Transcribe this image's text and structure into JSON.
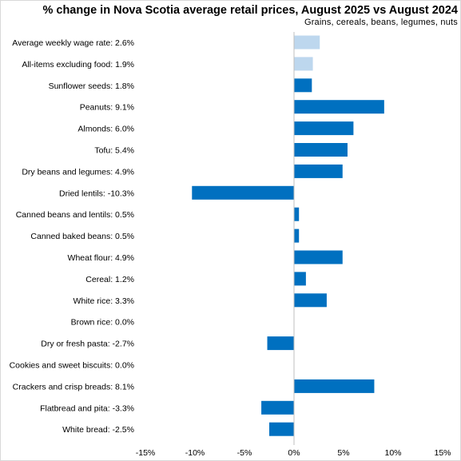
{
  "chart_data": {
    "type": "bar",
    "orientation": "horizontal",
    "title": "% change in Nova Scotia average retail prices, August 2025 vs August 2024",
    "subtitle": "Grains, cereals, beans, legumes, nuts",
    "xlim": [
      -15,
      15
    ],
    "xticks": [
      -15,
      -10,
      -5,
      0,
      5,
      10,
      15
    ],
    "xtick_labels": [
      "-15%",
      "-10%",
      "-5%",
      "0%",
      "5%",
      "10%",
      "15%"
    ],
    "grid": false,
    "colors": {
      "default": "#0070c0",
      "reference": "#bdd7ee"
    },
    "categories": [
      "Average weekly wage rate: 2.6%",
      "All-items excluding food: 1.9%",
      "Sunflower seeds: 1.8%",
      "Peanuts: 9.1%",
      "Almonds: 6.0%",
      "Tofu: 5.4%",
      "Dry beans and legumes: 4.9%",
      "Dried lentils: -10.3%",
      "Canned beans and lentils: 0.5%",
      "Canned baked beans: 0.5%",
      "Wheat flour: 4.9%",
      "Cereal: 1.2%",
      "White rice: 3.3%",
      "Brown rice: 0.0%",
      "Dry or fresh pasta: -2.7%",
      "Cookies and sweet biscuits: 0.0%",
      "Crackers and crisp breads: 8.1%",
      "Flatbread and pita: -3.3%",
      "White bread: -2.5%"
    ],
    "values": [
      2.6,
      1.9,
      1.8,
      9.1,
      6.0,
      5.4,
      4.9,
      -10.3,
      0.5,
      0.5,
      4.9,
      1.2,
      3.3,
      0.0,
      -2.7,
      0.0,
      8.1,
      -3.3,
      -2.5
    ],
    "reference_rows": [
      0,
      1
    ]
  }
}
